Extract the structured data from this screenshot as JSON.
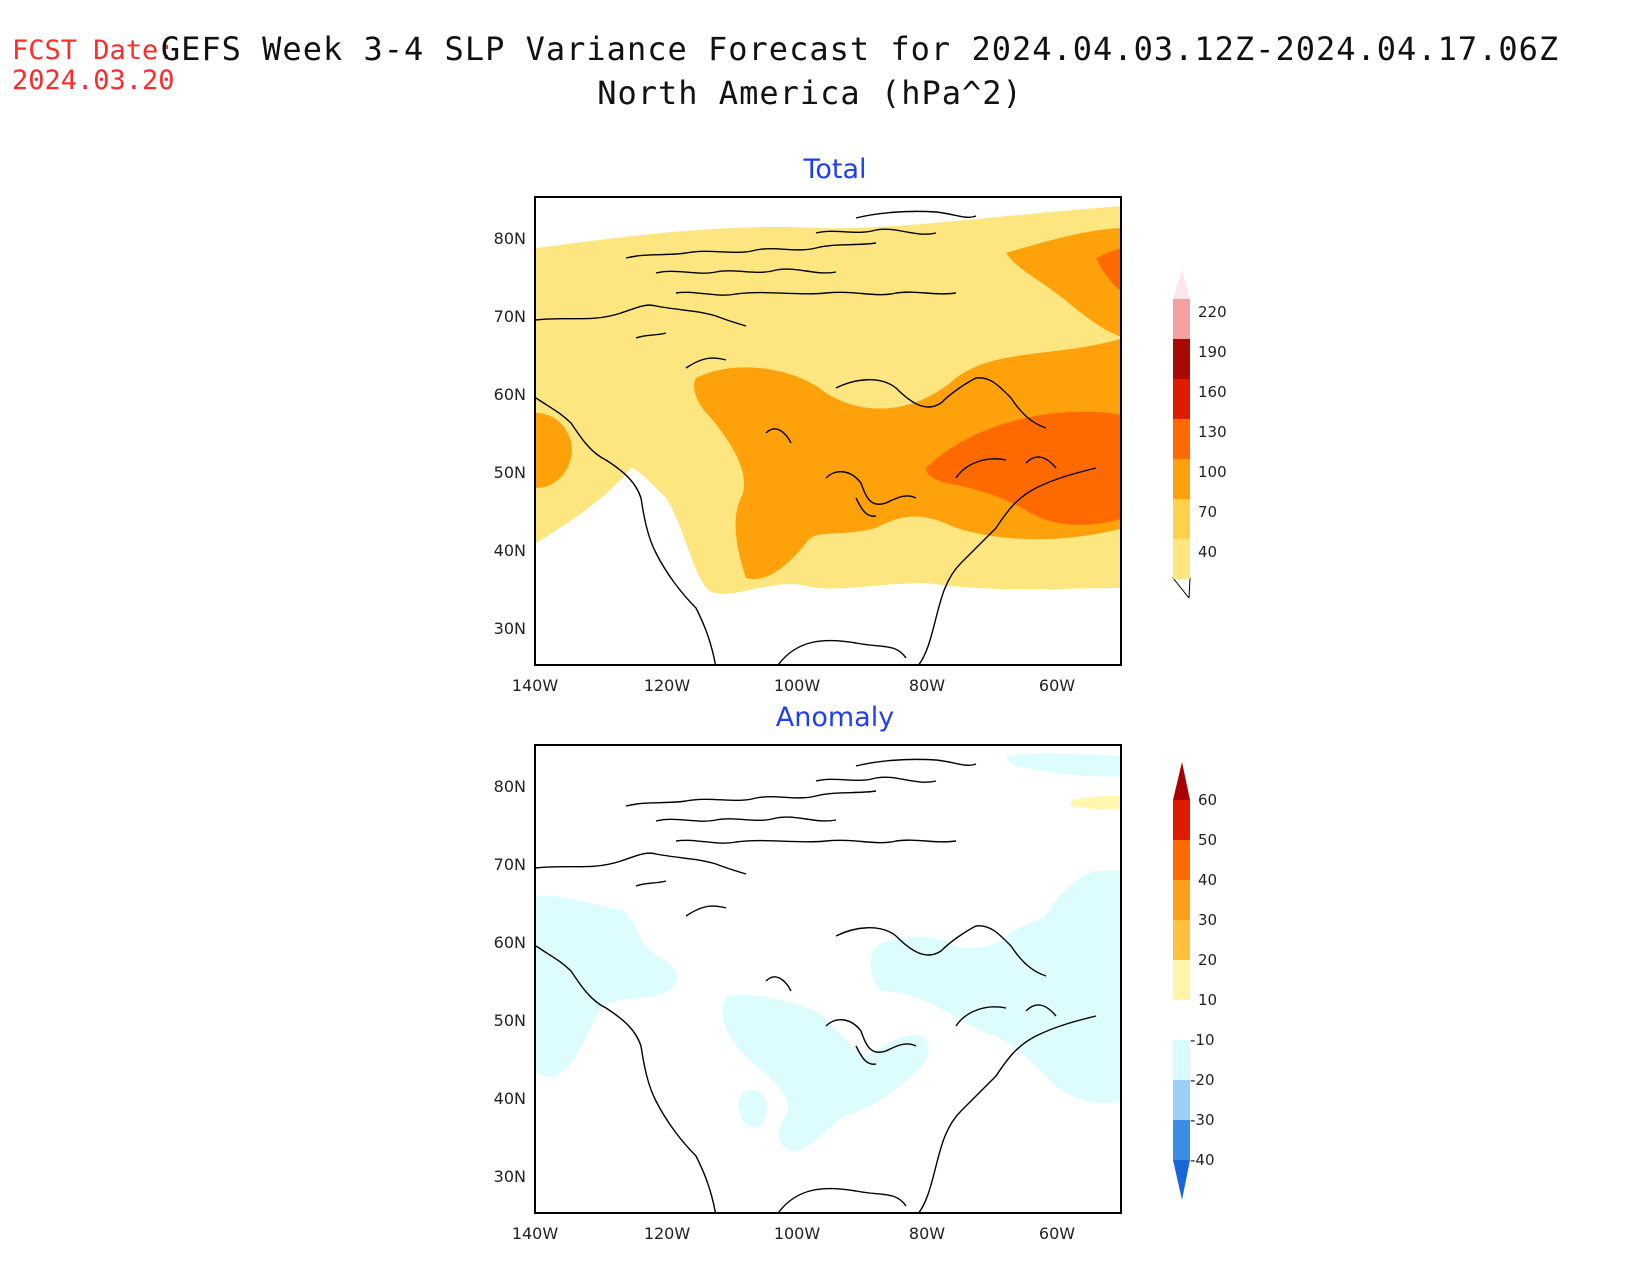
{
  "header": {
    "fcst_label": "FCST Date:",
    "fcst_date": "2024.03.20",
    "title_line1": "GEFS Week 3-4 SLP Variance Forecast for 2024.04.03.12Z-2024.04.17.06Z",
    "title_line2": "North America (hPa^2)"
  },
  "panels": [
    {
      "title": "Total",
      "lat_labels": [
        "80N",
        "70N",
        "60N",
        "50N",
        "40N",
        "30N"
      ],
      "lon_labels": [
        "140W",
        "120W",
        "100W",
        "80W",
        "60W"
      ],
      "colorbar": {
        "levels": [
          "40",
          "70",
          "100",
          "130",
          "160",
          "190",
          "220"
        ],
        "colors": [
          "#fff0a8",
          "#ffd24a",
          "#ffa01a",
          "#ff6a00",
          "#e01b00",
          "#a80a00",
          "#f4a0a0",
          "#ffe6e6"
        ]
      }
    },
    {
      "title": "Anomaly",
      "lat_labels": [
        "80N",
        "70N",
        "60N",
        "50N",
        "40N",
        "30N"
      ],
      "lon_labels": [
        "140W",
        "120W",
        "100W",
        "80W",
        "60W"
      ],
      "colorbar": {
        "levels": [
          "60",
          "50",
          "40",
          "30",
          "20",
          "10",
          "-10",
          "-20",
          "-30",
          "-40"
        ],
        "colors": [
          "#a80000",
          "#e01b00",
          "#ff6a00",
          "#ffa01a",
          "#ffc040",
          "#fff5a8",
          "#ffffff",
          "#d8fbff",
          "#9ad0f5",
          "#3b8ee8",
          "#1a66d8"
        ]
      }
    }
  ],
  "legend_colors": {
    "total_40_70": "#fde680",
    "total_70_100": "#ffa10a",
    "total_100_130": "#ff6a00",
    "anom_m10_m20": "#dcfcfd",
    "anom_10_20": "#fff7b0"
  }
}
